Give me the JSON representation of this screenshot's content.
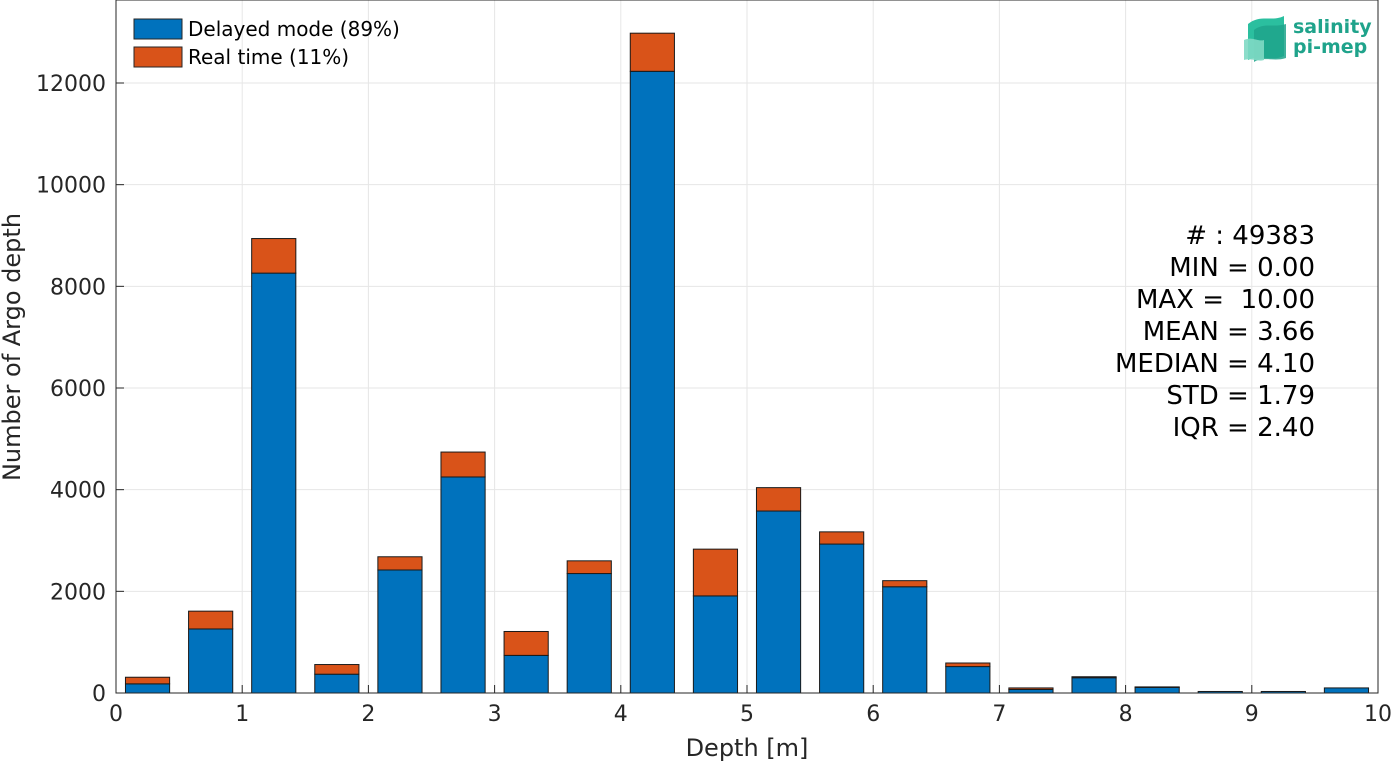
{
  "chart_data": {
    "type": "bar",
    "stacked": true,
    "xlabel": "Depth [m]",
    "ylabel": "Number of Argo depth",
    "xlim": [
      0,
      10
    ],
    "ylim": [
      0,
      13000
    ],
    "xticks": [
      "0",
      "1",
      "2",
      "3",
      "4",
      "5",
      "6",
      "7",
      "8",
      "9",
      "10"
    ],
    "yticks": [
      "0",
      "2000",
      "4000",
      "6000",
      "8000",
      "10000",
      "12000"
    ],
    "grid": true,
    "legend_position": "top-left",
    "bin_centers": [
      0.25,
      0.75,
      1.25,
      1.75,
      2.25,
      2.75,
      3.25,
      3.75,
      4.25,
      4.75,
      5.25,
      5.75,
      6.25,
      6.75,
      7.25,
      7.75,
      8.25,
      8.75,
      9.25,
      9.75
    ],
    "series": [
      {
        "name": "Delayed mode (89%)",
        "color": "#0072bd",
        "values": [
          180,
          1260,
          8260,
          370,
          2420,
          4250,
          740,
          2350,
          12230,
          1910,
          3580,
          2930,
          2090,
          520,
          70,
          300,
          110,
          30,
          30,
          100
        ]
      },
      {
        "name": "Real time (11%)",
        "color": "#d95319",
        "values": [
          130,
          350,
          680,
          190,
          260,
          490,
          470,
          250,
          750,
          920,
          460,
          240,
          120,
          70,
          30,
          20,
          10,
          0,
          0,
          0
        ]
      }
    ],
    "stats": [
      "# : 49383",
      "MIN = 0.00",
      "MAX =  10.00",
      "MEAN = 3.66",
      "MEDIAN = 4.10",
      "STD = 1.79",
      "IQR = 2.40"
    ]
  },
  "logo": {
    "line1": "salinity",
    "line2": "pi-mep",
    "color": "#1fa38b"
  }
}
